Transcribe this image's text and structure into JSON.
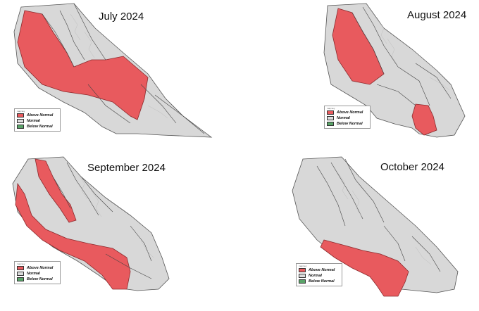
{
  "legend": {
    "heading": "map key",
    "items": [
      {
        "label": "Above Normal",
        "color": "#e85a5e"
      },
      {
        "label": "Normal",
        "color": "#dcdcdc"
      },
      {
        "label": "Below Normal",
        "color": "#5aa469"
      }
    ]
  },
  "maps": [
    {
      "title": "July 2024",
      "highlight": [
        "central-valley",
        "west-central-coast",
        "southern-cross-band",
        "sierra-transverse-east"
      ]
    },
    {
      "title": "August 2024",
      "highlight": [
        "sacramento-valley-north",
        "southeast-mountain-strip"
      ]
    },
    {
      "title": "September 2024",
      "highlight": [
        "northern-coast-range",
        "sierra-foothills-west",
        "west-coast-strip",
        "southern-cross-band",
        "southern-south-strip"
      ]
    },
    {
      "title": "October 2024",
      "highlight": [
        "southern-cross-band",
        "southern-south-strip"
      ]
    }
  ]
}
